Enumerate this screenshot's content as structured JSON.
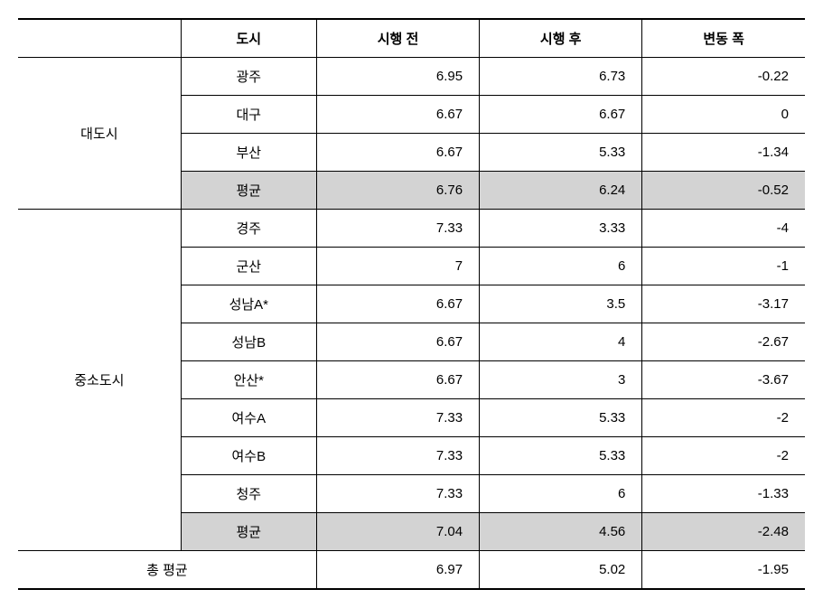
{
  "headers": {
    "category": "",
    "city": "도시",
    "before": "시행 전",
    "after": "시행 후",
    "change": "변동 폭"
  },
  "groups": [
    {
      "name": "대도시",
      "rows": [
        {
          "city": "광주",
          "before": "6.95",
          "after": "6.73",
          "change": "-0.22"
        },
        {
          "city": "대구",
          "before": "6.67",
          "after": "6.67",
          "change": "0"
        },
        {
          "city": "부산",
          "before": "6.67",
          "after": "5.33",
          "change": "-1.34"
        }
      ],
      "avg": {
        "city": "평균",
        "before": "6.76",
        "after": "6.24",
        "change": "-0.52"
      }
    },
    {
      "name": "중소도시",
      "rows": [
        {
          "city": "경주",
          "before": "7.33",
          "after": "3.33",
          "change": "-4"
        },
        {
          "city": "군산",
          "before": "7",
          "after": "6",
          "change": "-1"
        },
        {
          "city": "성남A*",
          "before": "6.67",
          "after": "3.5",
          "change": "-3.17"
        },
        {
          "city": "성남B",
          "before": "6.67",
          "after": "4",
          "change": "-2.67"
        },
        {
          "city": "안산*",
          "before": "6.67",
          "after": "3",
          "change": "-3.67"
        },
        {
          "city": "여수A",
          "before": "7.33",
          "after": "5.33",
          "change": "-2"
        },
        {
          "city": "여수B",
          "before": "7.33",
          "after": "5.33",
          "change": "-2"
        },
        {
          "city": "청주",
          "before": "7.33",
          "after": "6",
          "change": "-1.33"
        }
      ],
      "avg": {
        "city": "평균",
        "before": "7.04",
        "after": "4.56",
        "change": "-2.48"
      }
    }
  ],
  "total": {
    "label": "총 평균",
    "before": "6.97",
    "after": "5.02",
    "change": "-1.95"
  },
  "colors": {
    "highlight_bg": "#d3d3d3",
    "border": "#000000",
    "background": "#ffffff"
  },
  "column_widths": [
    "180px",
    "150px",
    "180px",
    "180px",
    "180px"
  ],
  "font_size_pt": 15
}
